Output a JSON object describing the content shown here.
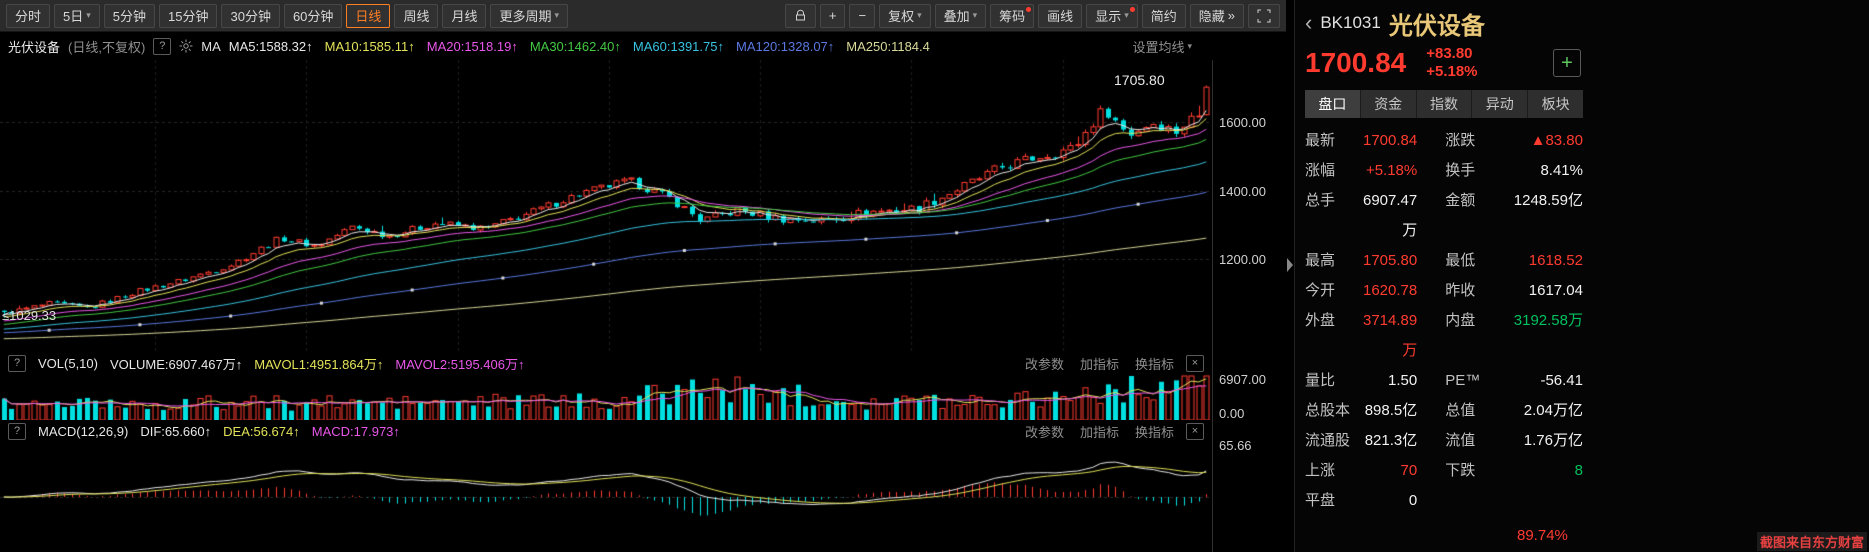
{
  "icons": {
    "caret": "▾"
  },
  "toolbar": {
    "periods": [
      {
        "name": "period-time-sharing",
        "label": "分时"
      },
      {
        "name": "period-5day",
        "label": "5日",
        "caret": true
      },
      {
        "name": "period-5min",
        "label": "5分钟"
      },
      {
        "name": "period-15min",
        "label": "15分钟"
      },
      {
        "name": "period-30min",
        "label": "30分钟"
      },
      {
        "name": "period-60min",
        "label": "60分钟"
      },
      {
        "name": "period-daily",
        "label": "日线",
        "active": true
      },
      {
        "name": "period-weekly",
        "label": "周线"
      },
      {
        "name": "period-monthly",
        "label": "月线"
      },
      {
        "name": "period-more",
        "label": "更多周期",
        "caret": true
      }
    ],
    "tools": [
      {
        "name": "lock-button",
        "icon": "lock"
      },
      {
        "name": "zoom-in-button",
        "label": "+"
      },
      {
        "name": "zoom-out-button",
        "label": "−"
      },
      {
        "name": "adjust-price-button",
        "label": "复权",
        "caret": true
      },
      {
        "name": "overlay-button",
        "label": "叠加",
        "caret": true
      },
      {
        "name": "chips-button",
        "label": "筹码",
        "dot": true
      },
      {
        "name": "draw-line-button",
        "label": "画线"
      },
      {
        "name": "display-button",
        "label": "显示",
        "caret": true,
        "dot": true
      },
      {
        "name": "simple-mode-button",
        "label": "简约"
      },
      {
        "name": "hide-button",
        "label": "隐藏",
        "suffix": "»"
      },
      {
        "name": "fullscreen-button",
        "icon": "fullscreen"
      }
    ]
  },
  "ma_row": {
    "title": "光伏设备",
    "subtitle": "(日线,不复权)",
    "help": "?",
    "ma_label": "MA",
    "items": [
      {
        "text": "MA5:1588.32",
        "arrow": "↑",
        "color": "#e8e8e8"
      },
      {
        "text": "MA10:1585.11",
        "arrow": "↑",
        "color": "#e2e25a"
      },
      {
        "text": "MA20:1518.19",
        "arrow": "↑",
        "color": "#e957e9"
      },
      {
        "text": "MA30:1462.40",
        "arrow": "↑",
        "color": "#43c943"
      },
      {
        "text": "MA60:1391.75",
        "arrow": "↑",
        "color": "#38c3e0"
      },
      {
        "text": "MA120:1328.07",
        "arrow": "↑",
        "color": "#5a78e0"
      },
      {
        "text": "MA250:1184.4",
        "arrow": "",
        "color": "#d8d89a"
      }
    ],
    "settings": "设置均线"
  },
  "chart": {
    "marker_high": "1705.80",
    "marker_low": "≤1029.33",
    "y_labels": [
      "1600.00",
      "1400.00",
      "1200.00"
    ],
    "vol_labels": [
      "6907.00",
      "0.00"
    ],
    "macd_label": "65.66"
  },
  "vol_header": {
    "help": "?",
    "name": "VOL(5,10)",
    "items": [
      {
        "text": "VOLUME:6907.467万",
        "arrow": "↑",
        "color": "#e8e8e8"
      },
      {
        "text": "MAVOL1:4951.864万",
        "arrow": "↑",
        "color": "#e2e25a"
      },
      {
        "text": "MAVOL2:5195.406万",
        "arrow": "↑",
        "color": "#e957e9"
      }
    ],
    "links": [
      "改参数",
      "加指标",
      "换指标"
    ],
    "close": "×"
  },
  "macd_header": {
    "help": "?",
    "name": "MACD(12,26,9)",
    "items": [
      {
        "text": "DIF:65.660",
        "arrow": "↑",
        "color": "#e8e8e8"
      },
      {
        "text": "DEA:56.674",
        "arrow": "↑",
        "color": "#e2e25a"
      },
      {
        "text": "MACD:17.973",
        "arrow": "↑",
        "color": "#e957e9"
      }
    ],
    "links": [
      "改参数",
      "加指标",
      "换指标"
    ],
    "close": "×"
  },
  "sidebar": {
    "collapse": "‹",
    "code": "BK1031",
    "name": "光伏设备",
    "price": "1700.84",
    "change": "+83.80",
    "change_pct": "+5.18%",
    "add_button": "+",
    "tabs": [
      {
        "name": "tab-quote",
        "label": "盘口",
        "active": true
      },
      {
        "name": "tab-funds",
        "label": "资金"
      },
      {
        "name": "tab-index",
        "label": "指数"
      },
      {
        "name": "tab-movement",
        "label": "异动"
      },
      {
        "name": "tab-sector",
        "label": "板块"
      }
    ],
    "stats": [
      {
        "l1": "最新",
        "v1": "1700.84",
        "c1": "red",
        "l2": "涨跌",
        "v2": "▲83.80",
        "c2": "red"
      },
      {
        "l1": "涨幅",
        "v1": "+5.18%",
        "c1": "red",
        "l2": "换手",
        "v2": "8.41%",
        "c2": "white"
      },
      {
        "l1": "总手",
        "v1": "6907.47万",
        "c1": "white",
        "l2": "金额",
        "v2": "1248.59亿",
        "c2": "white"
      },
      {
        "l1": "最高",
        "v1": "1705.80",
        "c1": "red",
        "l2": "最低",
        "v2": "1618.52",
        "c2": "red"
      },
      {
        "l1": "今开",
        "v1": "1620.78",
        "c1": "red",
        "l2": "昨收",
        "v2": "1617.04",
        "c2": "white"
      },
      {
        "l1": "外盘",
        "v1": "3714.89万",
        "c1": "red",
        "l2": "内盘",
        "v2": "3192.58万",
        "c2": "green"
      },
      {
        "l1": "量比",
        "v1": "1.50",
        "c1": "white",
        "l2": "PE™",
        "v2": "-56.41",
        "c2": "white"
      },
      {
        "l1": "总股本",
        "v1": "898.5亿",
        "c1": "white",
        "l2": "总值",
        "v2": "2.04万亿",
        "c2": "white"
      },
      {
        "l1": "流通股",
        "v1": "821.3亿",
        "c1": "white",
        "l2": "流值",
        "v2": "1.76万亿",
        "c2": "white"
      },
      {
        "l1": "上涨",
        "v1": "70",
        "c1": "red",
        "l2": "下跌",
        "v2": "8",
        "c2": "green"
      },
      {
        "l1": "平盘",
        "v1": "0",
        "c1": "white",
        "l2": "",
        "v2": "",
        "c2": "white"
      }
    ],
    "partial_value": "89.74%"
  },
  "watermark": "截图来自东方财富",
  "colors": {
    "up": "#ff3b30",
    "down": "#00e0e0"
  },
  "chart_data": {
    "type": "candlestick",
    "title": "BK1031 光伏设备 日线",
    "ylim": [
      930,
      1780
    ],
    "y_ticks": [
      1200,
      1400,
      1600
    ],
    "candle_count": 160,
    "noise_amp": 11,
    "trend_anchors": [
      [
        0,
        1042
      ],
      [
        0.04,
        1072
      ],
      [
        0.07,
        1058
      ],
      [
        0.11,
        1105
      ],
      [
        0.15,
        1140
      ],
      [
        0.19,
        1185
      ],
      [
        0.23,
        1262
      ],
      [
        0.26,
        1238
      ],
      [
        0.29,
        1295
      ],
      [
        0.32,
        1268
      ],
      [
        0.36,
        1305
      ],
      [
        0.4,
        1288
      ],
      [
        0.44,
        1338
      ],
      [
        0.48,
        1392
      ],
      [
        0.52,
        1428
      ],
      [
        0.555,
        1375
      ],
      [
        0.58,
        1312
      ],
      [
        0.61,
        1342
      ],
      [
        0.645,
        1318
      ],
      [
        0.68,
        1312
      ],
      [
        0.72,
        1338
      ],
      [
        0.76,
        1348
      ],
      [
        0.8,
        1415
      ],
      [
        0.83,
        1468
      ],
      [
        0.86,
        1498
      ],
      [
        0.89,
        1525
      ],
      [
        0.915,
        1640
      ],
      [
        0.935,
        1562
      ],
      [
        0.955,
        1598
      ],
      [
        0.975,
        1572
      ],
      [
        0.99,
        1617
      ],
      [
        1,
        1700.84
      ]
    ],
    "last_candle": {
      "open": 1620.78,
      "high": 1705.8,
      "low": 1618.52,
      "close": 1700.84
    },
    "prev_close": 1617.04,
    "min_price": 1029.33,
    "max_price": 1705.8,
    "ma_lines": [
      {
        "name": "MA5",
        "current": 1588.32,
        "color": "#e8e8e8",
        "alpha": 0.33,
        "start": 1036
      },
      {
        "name": "MA10",
        "current": 1585.11,
        "color": "#e2e25a",
        "alpha": 0.18,
        "start": 1030
      },
      {
        "name": "MA20",
        "current": 1518.19,
        "color": "#e957e9",
        "alpha": 0.095,
        "start": 1018
      },
      {
        "name": "MA30",
        "current": 1462.4,
        "color": "#43c943",
        "alpha": 0.064,
        "start": 1008
      },
      {
        "name": "MA60",
        "current": 1391.75,
        "color": "#38c3e0",
        "alpha": 0.033,
        "start": 995
      },
      {
        "name": "MA120",
        "current": 1328.07,
        "color": "#5a78e0",
        "alpha": 0.017,
        "start": 985,
        "squares": true
      },
      {
        "name": "MA250",
        "current": 1184.4,
        "color": "#d8d89a",
        "alpha": 0.008,
        "start": 968
      }
    ],
    "volume": {
      "ylim": [
        0,
        6907
      ],
      "unit": "万",
      "last": 6907.467,
      "mavol1": 4951.864,
      "mavol2": 5195.406,
      "base_anchors": [
        [
          0,
          2500
        ],
        [
          0.3,
          2700
        ],
        [
          0.5,
          2900
        ],
        [
          0.58,
          5100
        ],
        [
          0.64,
          4300
        ],
        [
          0.72,
          2900
        ],
        [
          0.8,
          3100
        ],
        [
          0.88,
          3900
        ],
        [
          0.95,
          5100
        ],
        [
          1,
          6400
        ]
      ]
    },
    "macd": {
      "dif": 65.66,
      "dea": 56.674,
      "macd": 17.973,
      "ylim": [
        -90,
        90
      ]
    }
  }
}
